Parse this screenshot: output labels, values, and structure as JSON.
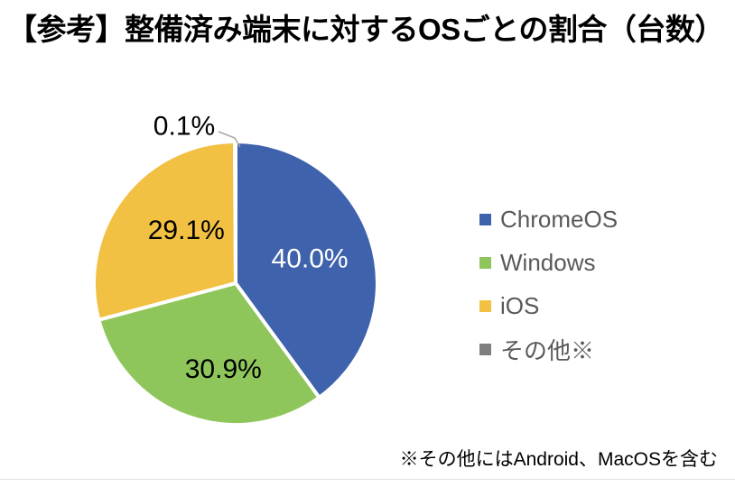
{
  "title": "【参考】整備済み端末に対するOSごとの割合（台数）",
  "footnote": "※その他にはAndroid、MacOSを含む",
  "chart_data": {
    "type": "pie",
    "title": "整備済み端末に対するOSごとの割合（台数）",
    "start_angle_deg": 0,
    "direction": "clockwise",
    "legend_position": "right",
    "legend_text_color": "#595959",
    "leader_line_color": "#A6A6A6",
    "series": [
      {
        "name": "ChromeOS",
        "value": 40.0,
        "label": "40.0%",
        "color": "#3F62AD",
        "label_color": "#FFFFFF",
        "label_inside": true
      },
      {
        "name": "Windows",
        "value": 30.9,
        "label": "30.9%",
        "color": "#8FC65C",
        "label_color": "#000000",
        "label_inside": true
      },
      {
        "name": "iOS",
        "value": 29.1,
        "label": "29.1%",
        "color": "#F2C042",
        "label_color": "#000000",
        "label_inside": true
      },
      {
        "name": "その他※",
        "value": 0.1,
        "label": "0.1%",
        "color": "#7F7F7F",
        "label_color": "#000000",
        "label_inside": false
      }
    ]
  }
}
